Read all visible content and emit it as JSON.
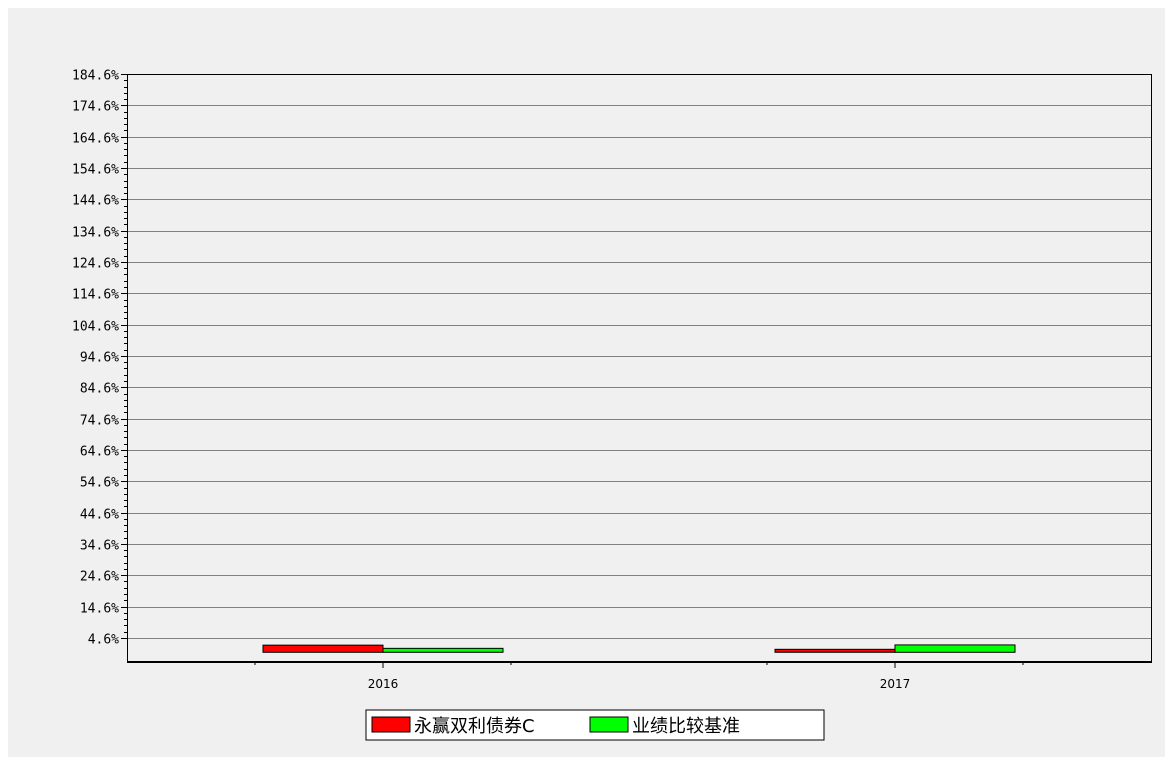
{
  "chart_data": {
    "type": "bar",
    "title": "",
    "xlabel": "",
    "ylabel": "",
    "categories": [
      "2016",
      "2017"
    ],
    "series": [
      {
        "name": "永赢双利债券C",
        "color": "#ff0000",
        "values": [
          2.28,
          0.95
        ]
      },
      {
        "name": "业绩比较基准",
        "color": "#00ff00",
        "values": [
          1.26,
          2.35
        ]
      }
    ],
    "yticks": [
      "184.6%",
      "174.6%",
      "164.6%",
      "154.6%",
      "144.6%",
      "134.6%",
      "124.6%",
      "114.6%",
      "104.6%",
      "94.6%",
      "84.6%",
      "74.6%",
      "64.6%",
      "54.6%",
      "44.6%",
      "34.6%",
      "24.6%",
      "14.6%",
      "4.6%"
    ],
    "ylim": [
      -3.1,
      184.6
    ],
    "grid": true,
    "legend_position": "bottom-center"
  }
}
